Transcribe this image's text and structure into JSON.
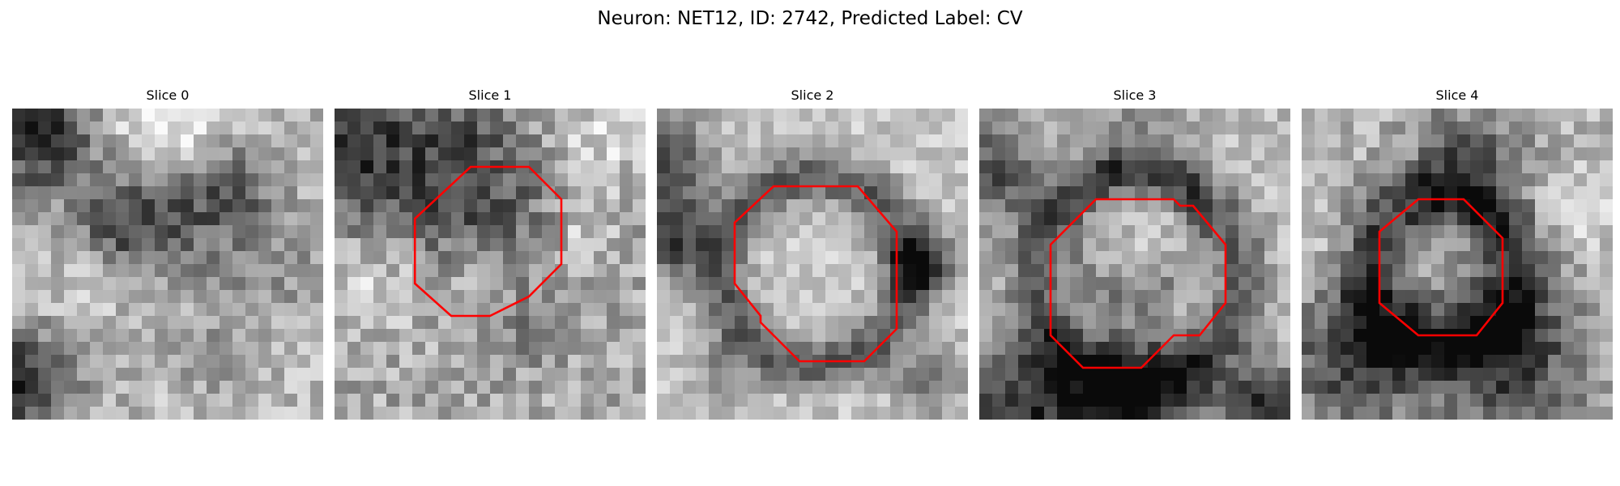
{
  "figure": {
    "title": "Neuron: NET12, ID: 2742, Predicted Label: CV"
  },
  "panels": [
    {
      "title": "Slice 0",
      "has_contour": false
    },
    {
      "title": "Slice 1",
      "has_contour": true
    },
    {
      "title": "Slice 2",
      "has_contour": true
    },
    {
      "title": "Slice 3",
      "has_contour": true
    },
    {
      "title": "Slice 4",
      "has_contour": true
    }
  ],
  "colors": {
    "contour": "#ff0000",
    "background": "#ffffff"
  }
}
